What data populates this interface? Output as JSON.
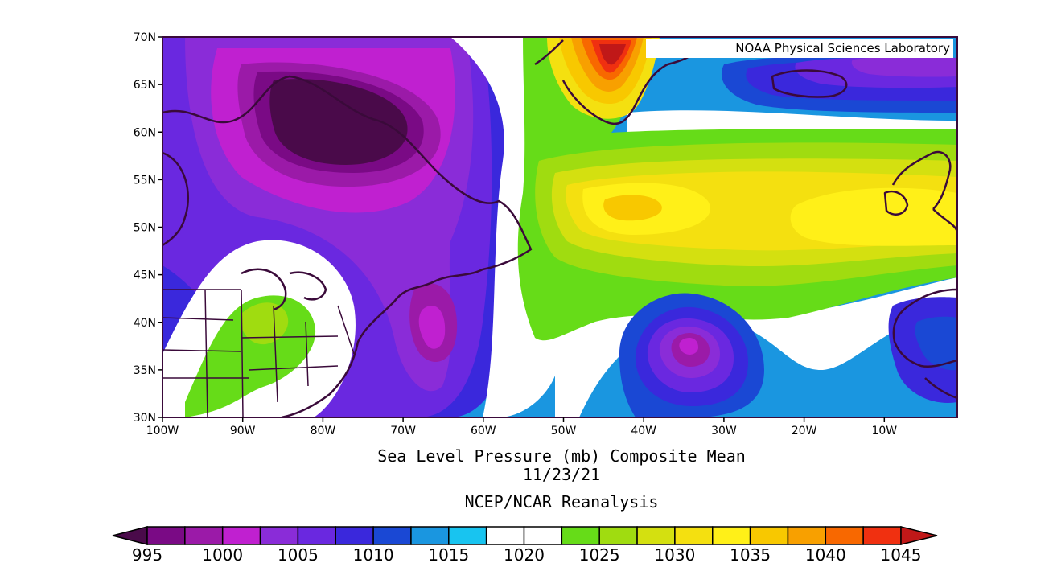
{
  "credit": "NOAA Physical Sciences Laboratory",
  "title": "Sea Level Pressure (mb) Composite Mean",
  "date": "11/23/21",
  "source": "NCEP/NCAR Reanalysis",
  "lat_labels": [
    "70N",
    "65N",
    "60N",
    "55N",
    "50N",
    "45N",
    "40N",
    "35N",
    "30N"
  ],
  "lon_labels": [
    "100W",
    "90W",
    "80W",
    "70W",
    "60W",
    "50W",
    "40W",
    "30W",
    "20W",
    "10W"
  ],
  "colorbar": {
    "labels": [
      "995",
      "1000",
      "1005",
      "1010",
      "1015",
      "1020",
      "1025",
      "1030",
      "1035",
      "1040",
      "1045"
    ],
    "colors": [
      "#4a0a4a",
      "#7a0a85",
      "#9b1aa8",
      "#c020d0",
      "#8a2cd8",
      "#6a28e0",
      "#3a28dc",
      "#1a48d4",
      "#1a96e0",
      "#18c4f0",
      "#ffffff",
      "#ffffff",
      "#66dc18",
      "#a0dc10",
      "#d4e010",
      "#f4e010",
      "#fff018",
      "#f8c800",
      "#f8a000",
      "#f86800",
      "#f03010",
      "#c01818"
    ]
  },
  "features": {
    "low_centers": [
      "Labrador Sea / Hudson Bay low",
      "Central Atlantic low near 37N 35W",
      "Western Atlantic trough near 38N 65W"
    ],
    "high_centers": [
      "Greenland high",
      "Mid-Atlantic ridge near 52N 42W",
      "Western Europe high near 50N 10W"
    ]
  }
}
